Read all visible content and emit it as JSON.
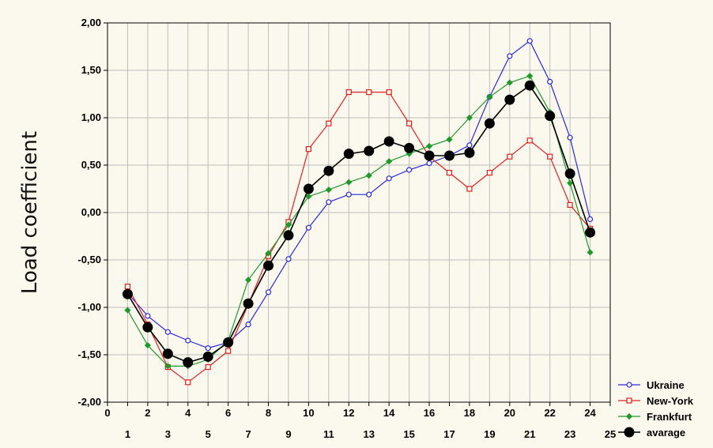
{
  "chart_data": {
    "type": "line",
    "title": "",
    "xlabel": "",
    "ylabel": "Load coefficient",
    "xlim": [
      0,
      25
    ],
    "ylim": [
      -2,
      2
    ],
    "x_ticks_top": [
      "0",
      "2",
      "4",
      "6",
      "8",
      "10",
      "12",
      "14",
      "16",
      "18",
      "20",
      "22",
      "24"
    ],
    "x_ticks_bottom": [
      "1",
      "3",
      "5",
      "7",
      "9",
      "11",
      "13",
      "15",
      "17",
      "19",
      "21",
      "23",
      "25"
    ],
    "y_ticks": [
      "2,00",
      "1,50",
      "1,00",
      "0,50",
      "0,00",
      "-0,50",
      "-1,00",
      "-1,50",
      "-2,00"
    ],
    "grid": true,
    "legend_position": "bottom-right",
    "x": [
      1,
      2,
      3,
      4,
      5,
      6,
      7,
      8,
      9,
      10,
      11,
      12,
      13,
      14,
      15,
      16,
      17,
      18,
      19,
      20,
      21,
      22,
      23,
      24
    ],
    "series": [
      {
        "name": "Ukraine",
        "color": "#2a2ae0",
        "marker": "circle-open",
        "values": [
          -0.85,
          -1.09,
          -1.26,
          -1.35,
          -1.43,
          -1.37,
          -1.18,
          -0.84,
          -0.49,
          -0.16,
          0.11,
          0.19,
          0.19,
          0.36,
          0.45,
          0.52,
          0.6,
          0.71,
          1.22,
          1.65,
          1.81,
          1.38,
          0.79,
          -0.07
        ]
      },
      {
        "name": "New-York",
        "color": "#e02020",
        "marker": "square-open",
        "values": [
          -0.78,
          -1.18,
          -1.63,
          -1.79,
          -1.63,
          -1.46,
          -0.97,
          -0.46,
          -0.1,
          0.67,
          0.94,
          1.27,
          1.27,
          1.27,
          0.94,
          0.59,
          0.42,
          0.25,
          0.42,
          0.59,
          0.76,
          0.59,
          0.08,
          -0.17
        ]
      },
      {
        "name": "Frankfurt",
        "color": "#1f9a2a",
        "marker": "diamond",
        "values": [
          -1.03,
          -1.4,
          -1.62,
          -1.62,
          -1.55,
          -1.35,
          -0.71,
          -0.43,
          -0.13,
          0.17,
          0.24,
          0.32,
          0.39,
          0.54,
          0.62,
          0.7,
          0.77,
          1.0,
          1.22,
          1.37,
          1.44,
          1.06,
          0.31,
          -0.42
        ]
      },
      {
        "name": "avarage",
        "color": "#000000",
        "marker": "circle-filled",
        "values": [
          -0.86,
          -1.21,
          -1.49,
          -1.58,
          -1.52,
          -1.37,
          -0.96,
          -0.56,
          -0.24,
          0.25,
          0.44,
          0.62,
          0.65,
          0.75,
          0.68,
          0.6,
          0.6,
          0.63,
          0.94,
          1.19,
          1.34,
          1.02,
          0.41,
          -0.21
        ]
      }
    ]
  }
}
